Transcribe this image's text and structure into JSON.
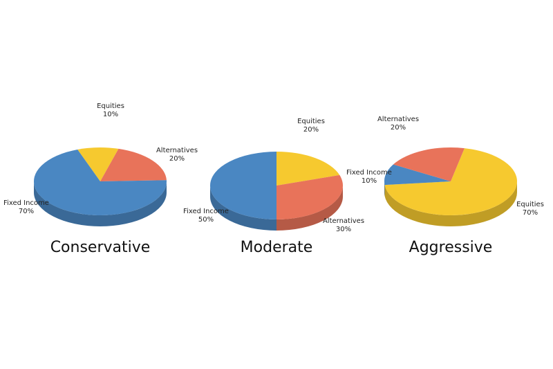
{
  "chart_data": [
    {
      "type": "pie",
      "title": "Conservative",
      "categories": [
        "Equities",
        "Alternatives",
        "Fixed Income"
      ],
      "values": [
        10,
        20,
        70
      ],
      "value_labels": [
        "10%",
        "20%",
        "70%"
      ],
      "colors": [
        "#f6c92f",
        "#e8735a",
        "#4a87c2"
      ]
    },
    {
      "type": "pie",
      "title": "Moderate",
      "categories": [
        "Equities",
        "Alternatives",
        "Fixed Income"
      ],
      "values": [
        20,
        30,
        50
      ],
      "value_labels": [
        "20%",
        "30%",
        "50%"
      ],
      "colors": [
        "#f6c92f",
        "#e8735a",
        "#4a87c2"
      ]
    },
    {
      "type": "pie",
      "title": "Aggressive",
      "categories": [
        "Equities",
        "Fixed Income",
        "Alternatives"
      ],
      "values": [
        70,
        10,
        20
      ],
      "value_labels": [
        "70%",
        "10%",
        "20%"
      ],
      "colors": [
        "#f6c92f",
        "#4a87c2",
        "#e8735a"
      ]
    }
  ]
}
